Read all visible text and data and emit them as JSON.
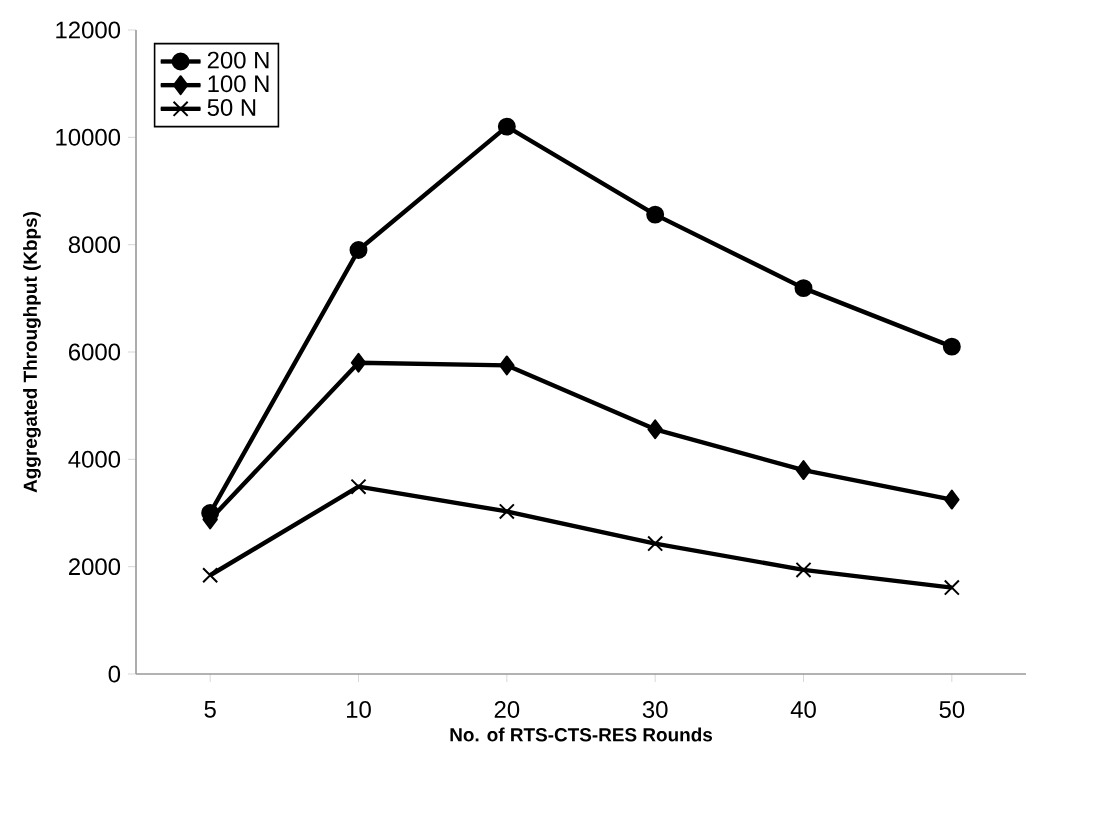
{
  "chart_data": {
    "type": "line",
    "xlabel": "No. of RTS-CTS-RES Rounds",
    "ylabel": "Aggregated Throughput (Kbps)",
    "categories": [
      "5",
      "10",
      "20",
      "30",
      "40",
      "50"
    ],
    "series": [
      {
        "name": "200 N",
        "color": "#000000",
        "marker": "circle",
        "values": [
          3000,
          7900,
          10200,
          8560,
          7190,
          6100
        ]
      },
      {
        "name": "100 N",
        "color": "#000000",
        "marker": "diamond",
        "values": [
          2880,
          5800,
          5750,
          4560,
          3800,
          3250
        ]
      },
      {
        "name": "50 N",
        "color": "#000000",
        "marker": "cross",
        "values": [
          1840,
          3490,
          3030,
          2430,
          1940,
          1610
        ]
      }
    ],
    "ylim": [
      0,
      12000
    ],
    "yticks": [
      0,
      2000,
      4000,
      6000,
      8000,
      10000,
      12000
    ],
    "grid": false,
    "legend": "top left",
    "line_style": "solid"
  }
}
